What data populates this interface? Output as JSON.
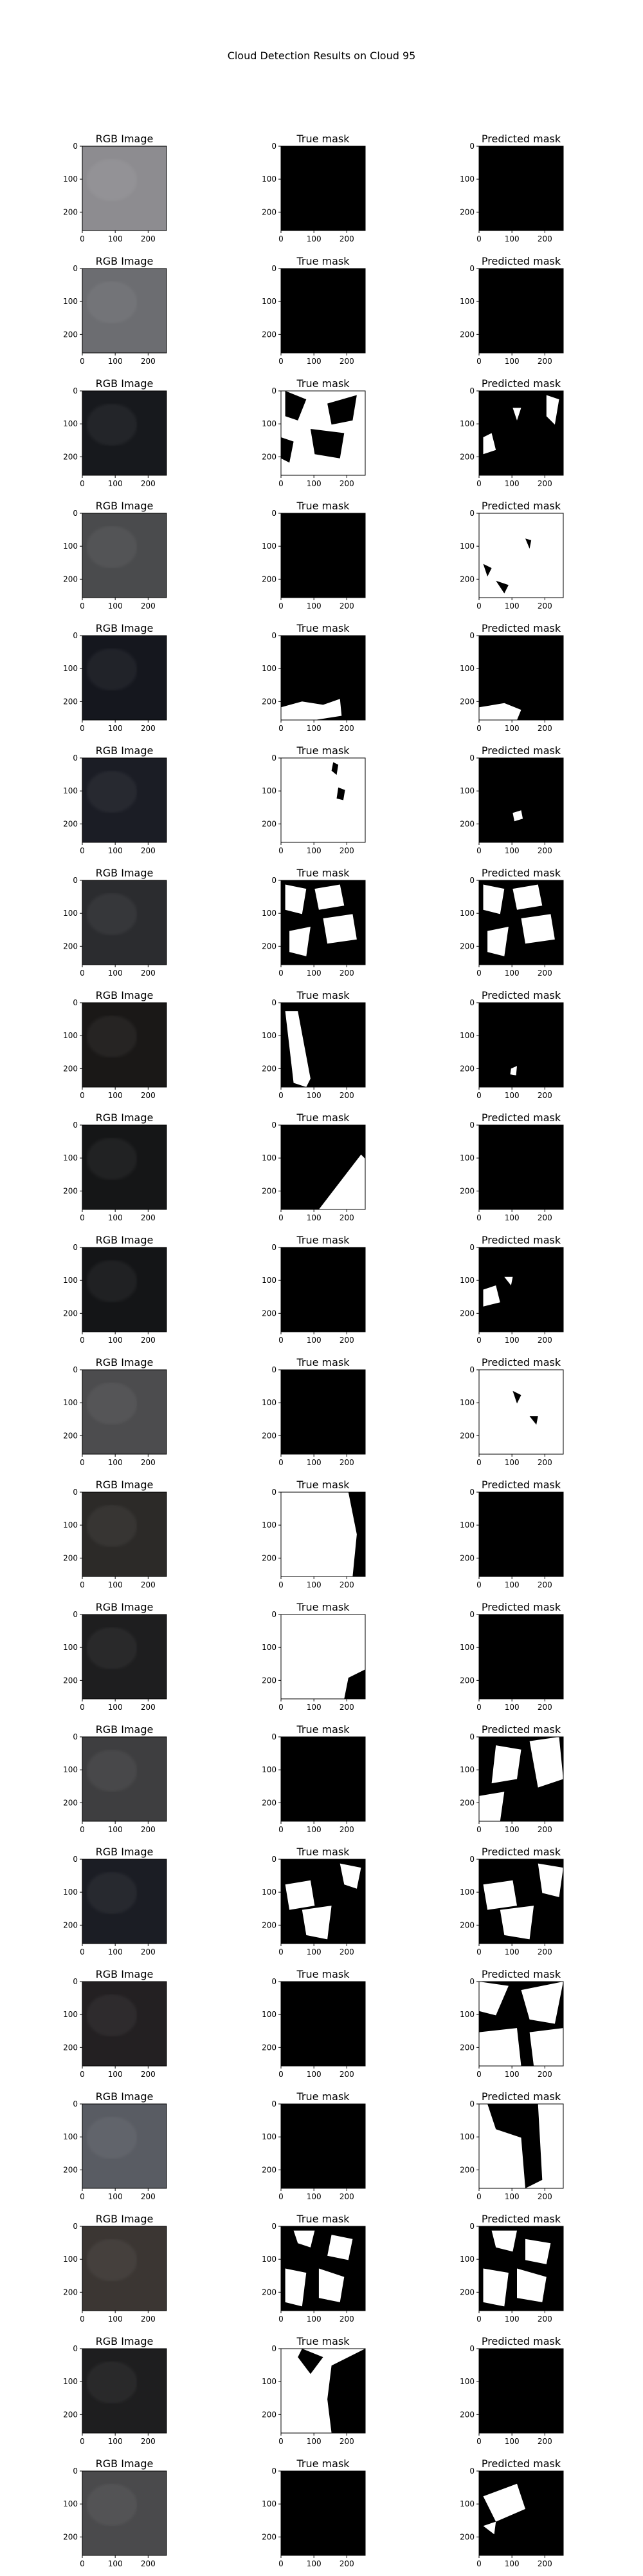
{
  "figure": {
    "title": "Cloud Detection Results on Cloud 95"
  },
  "chart_data": {
    "type": "image-grid",
    "title": "Cloud Detection Results on Cloud 95",
    "columns": [
      "RGB Image",
      "True mask",
      "Predicted mask"
    ],
    "x_ticks": [
      0,
      100,
      200
    ],
    "y_ticks": [
      0,
      100,
      200
    ],
    "image_extent": [
      0,
      256
    ],
    "rows": [
      {
        "rgb": "#8d8c90",
        "true_mask": "black",
        "pred_mask": "black"
      },
      {
        "rgb": "#6c6d71",
        "true_mask": "black",
        "pred_mask": "black"
      },
      {
        "rgb": "#17191d",
        "true_mask": "mostly white with black patches",
        "pred_mask": "black with scattered white"
      },
      {
        "rgb": "#4a4b4d",
        "true_mask": "black",
        "pred_mask": "white with black specks"
      },
      {
        "rgb": "#15171e",
        "true_mask": "black with white at bottom",
        "pred_mask": "black with white at bottom"
      },
      {
        "rgb": "#1b1d25",
        "true_mask": "white with small black patch",
        "pred_mask": "black with small white blob"
      },
      {
        "rgb": "#2b2c2f",
        "true_mask": "black with white clouds",
        "pred_mask": "black with white clouds"
      },
      {
        "rgb": "#1a1817",
        "true_mask": "black with white diagonal band",
        "pred_mask": "black with small white spot"
      },
      {
        "rgb": "#151617",
        "true_mask": "black with white lower-right",
        "pred_mask": "black"
      },
      {
        "rgb": "#141517",
        "true_mask": "black",
        "pred_mask": "black with white spots left"
      },
      {
        "rgb": "#4c4c4e",
        "true_mask": "black",
        "pred_mask": "white with black specks"
      },
      {
        "rgb": "#2c2a28",
        "true_mask": "white with black right side",
        "pred_mask": "black"
      },
      {
        "rgb": "#1e1e1f",
        "true_mask": "white with black bottom-right",
        "pred_mask": "black"
      },
      {
        "rgb": "#3e3e40",
        "true_mask": "black",
        "pred_mask": "black with white patches"
      },
      {
        "rgb": "#1b1d24",
        "true_mask": "black with white clouds",
        "pred_mask": "black with white clouds"
      },
      {
        "rgb": "#232022",
        "true_mask": "black",
        "pred_mask": "mixed white and black"
      },
      {
        "rgb": "#595c63",
        "true_mask": "black",
        "pred_mask": "white with black block"
      },
      {
        "rgb": "#3b3633",
        "true_mask": "black with white clouds",
        "pred_mask": "black with white clouds"
      },
      {
        "rgb": "#1e1e1f",
        "true_mask": "white with black",
        "pred_mask": "black"
      },
      {
        "rgb": "#4a4a4c",
        "true_mask": "black",
        "pred_mask": "black with white patch"
      }
    ]
  }
}
